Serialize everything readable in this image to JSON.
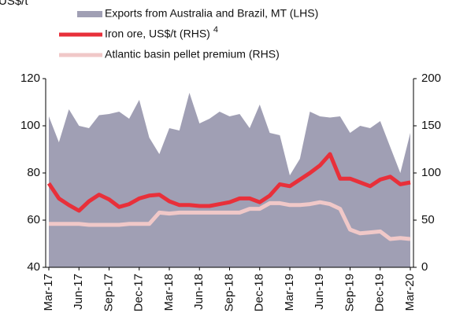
{
  "chart_data": {
    "type": "area_line",
    "y_label": "US$/t",
    "categories": [
      "Mar-17",
      null,
      null,
      "Jun-17",
      null,
      null,
      "Sep-17",
      null,
      null,
      "Dec-17",
      null,
      null,
      "Mar-18",
      null,
      null,
      "Jun-18",
      null,
      null,
      "Sep-18",
      null,
      null,
      "Dec-18",
      null,
      null,
      "Mar-19",
      null,
      null,
      "Jun-19",
      null,
      null,
      "Sep-19",
      null,
      null,
      "Dec-19",
      null,
      null,
      "Mar-20"
    ],
    "series": [
      {
        "name": "Exports from Australia and Brazil, MT (LHS)",
        "color": "#a09fb4",
        "kind": "area",
        "axis": "y",
        "values": [
          104,
          93,
          107,
          100,
          99,
          104.5,
          105,
          106,
          103,
          111,
          95,
          88,
          99,
          98,
          114,
          101,
          103,
          106,
          104,
          105,
          99,
          109,
          97,
          96,
          79,
          86,
          106,
          104,
          103.5,
          104,
          97,
          100,
          99,
          102,
          91,
          80,
          97
        ]
      },
      {
        "name": "Iron ore, US$/t (RHS)",
        "note": "4",
        "color": "#e8303a",
        "kind": "line",
        "axis": "y2",
        "values": [
          89,
          73,
          66,
          60,
          70,
          77,
          72,
          64,
          67,
          73,
          76,
          77,
          70,
          66,
          66,
          65,
          65,
          67,
          69,
          73,
          73,
          69,
          76,
          88,
          86,
          93,
          100,
          108,
          120,
          94,
          94,
          90,
          86,
          93,
          96,
          88,
          90
        ]
      },
      {
        "name": "Atlantic basin pellet premium (RHS)",
        "color": "#f0c8c8",
        "kind": "line",
        "axis": "y2",
        "values": [
          46,
          46,
          46,
          46,
          45,
          45,
          45,
          45,
          46,
          46,
          46,
          58,
          57,
          58,
          58,
          58,
          58,
          58,
          58,
          58,
          62,
          62,
          68,
          68,
          66,
          66,
          67,
          69,
          67,
          62,
          40,
          36,
          37,
          38,
          30,
          31,
          30
        ]
      }
    ],
    "ylim": [
      40,
      120
    ],
    "yticks": [
      40,
      60,
      80,
      100,
      120
    ],
    "y2lim": [
      0,
      200
    ],
    "y2ticks": [
      0,
      50,
      100,
      150,
      200
    ]
  }
}
